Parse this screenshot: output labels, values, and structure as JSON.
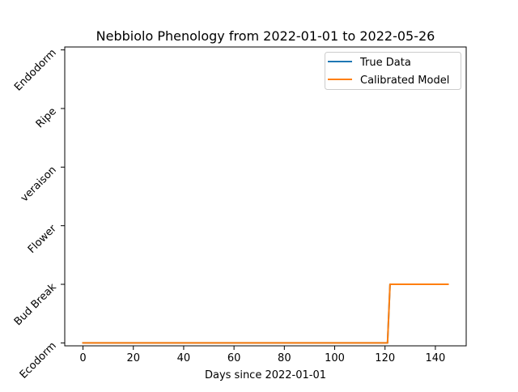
{
  "chart_data": {
    "type": "line",
    "title": "Nebbiolo Phenology from 2022-01-01 to 2022-05-26",
    "xlabel": "Days since 2022-01-01",
    "ylabel": "",
    "xlim": [
      -7.25,
      152.25
    ],
    "ylim": [
      -0.05,
      5.05
    ],
    "x_ticks": [
      0,
      20,
      40,
      60,
      80,
      100,
      120,
      140
    ],
    "y_ticks": [
      0,
      1,
      2,
      3,
      4,
      5
    ],
    "y_tick_labels": [
      "Ecodorm",
      "Bud Break",
      "Flower",
      "veraison",
      "Ripe",
      "Endodorm"
    ],
    "grid": false,
    "legend_position": "top-right",
    "series": [
      {
        "name": "True Data",
        "color": "#1f77b4",
        "x": [
          0,
          121,
          122,
          145
        ],
        "y": [
          0,
          0,
          1,
          1
        ]
      },
      {
        "name": "Calibrated Model",
        "color": "#ff7f0e",
        "x": [
          0,
          121,
          122,
          145
        ],
        "y": [
          0,
          0,
          1,
          1
        ]
      }
    ]
  }
}
